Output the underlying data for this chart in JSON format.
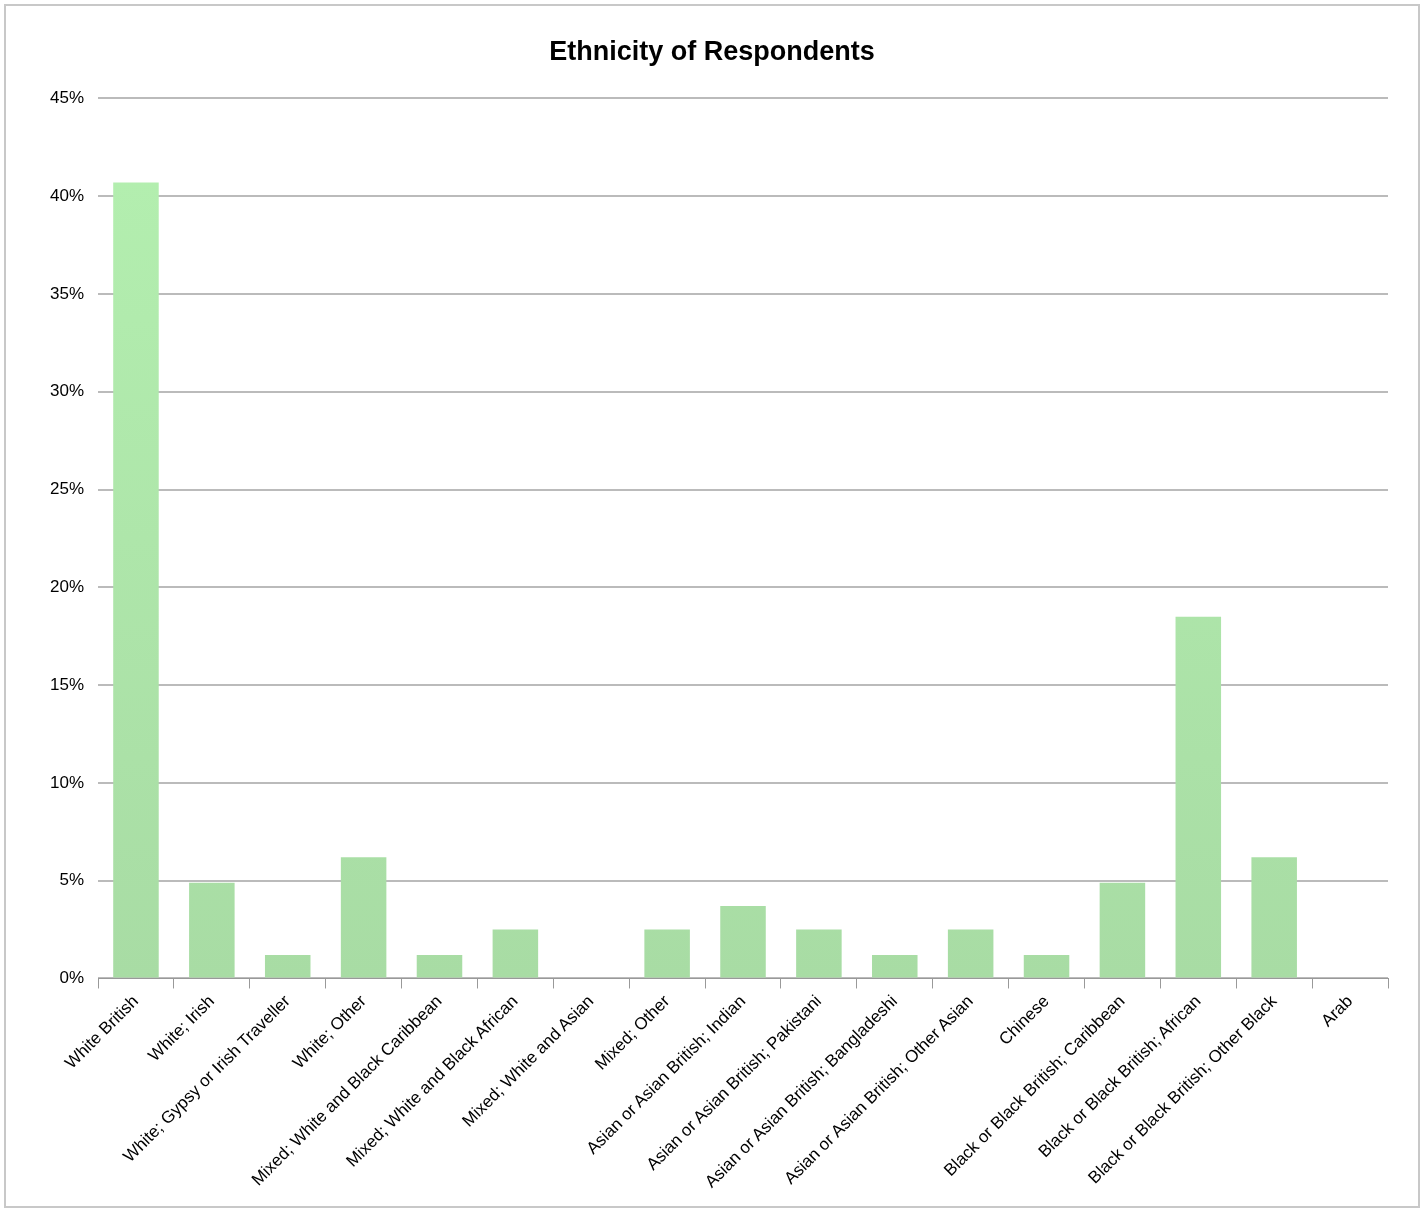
{
  "chart_data": {
    "type": "bar",
    "title": "Ethnicity of Respondents",
    "categories": [
      "White British",
      "White; Irish",
      "White; Gypsy or Irish Traveller",
      "White; Other",
      "Mixed; White and Black Caribbean",
      "Mixed; White and Black African",
      "Mixed; White and Asian",
      "Mixed; Other",
      "Asian or Asian British; Indian",
      "Asian or Asian British; Pakistani",
      "Asian or Asian British; Bangladeshi",
      "Asian or Asian British; Other Asian",
      "Chinese",
      "Black or Black British; Caribbean",
      "Black or Black British; African",
      "Black or Black British; Other Black",
      "Arab"
    ],
    "values": [
      40.7,
      4.9,
      1.2,
      6.2,
      1.2,
      2.5,
      0,
      2.5,
      3.7,
      2.5,
      1.2,
      2.5,
      1.2,
      4.9,
      18.5,
      6.2,
      0
    ],
    "color": "#b4f0b0",
    "ylim": [
      0,
      45
    ],
    "yticks": [
      {
        "value": 0,
        "label": "0%"
      },
      {
        "value": 5,
        "label": "5%"
      },
      {
        "value": 10,
        "label": "10%"
      },
      {
        "value": 15,
        "label": "15%"
      },
      {
        "value": 20,
        "label": "20%"
      },
      {
        "value": 25,
        "label": "25%"
      },
      {
        "value": 30,
        "label": "30%"
      },
      {
        "value": 35,
        "label": "35%"
      },
      {
        "value": 40,
        "label": "40%"
      },
      {
        "value": 45,
        "label": "45%"
      }
    ],
    "grid": "y"
  }
}
